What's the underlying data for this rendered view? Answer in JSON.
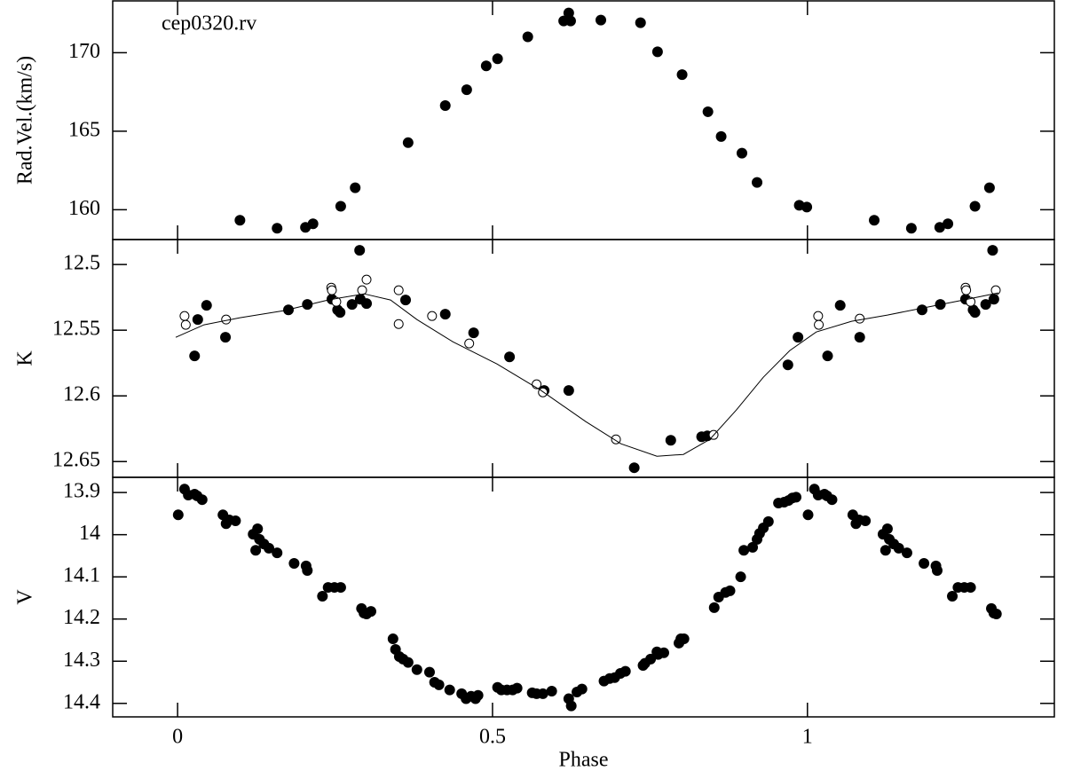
{
  "chart_data": [
    {
      "type": "scatter",
      "ylabel": "Rad.Vel.(km/s)",
      "annotation": "cep0320.rv",
      "xlim": [
        -0.103,
        1.392
      ],
      "xticks": [
        0,
        0.5,
        1
      ],
      "ylim": [
        158.1,
        173.3
      ],
      "yticks": [
        160,
        165,
        170
      ],
      "series": [
        {
          "color": "#000000",
          "marker": "filled",
          "x": [
            0.099,
            0.158,
            0.203,
            0.215,
            0.259,
            0.282,
            0.366,
            0.425,
            0.459,
            0.49,
            0.508,
            0.556,
            0.613,
            0.621,
            0.624,
            0.672,
            0.735,
            0.762,
            0.801,
            0.842,
            0.863,
            0.896,
            0.92,
            0.987,
            0.999,
            1.106,
            1.165,
            1.21,
            1.223,
            1.266,
            1.289
          ],
          "values": [
            159.33,
            158.82,
            158.88,
            159.1,
            160.22,
            161.4,
            164.27,
            166.63,
            167.64,
            169.16,
            169.61,
            171.01,
            172.02,
            172.53,
            172.02,
            172.08,
            171.91,
            170.06,
            168.6,
            166.24,
            164.66,
            163.6,
            161.74,
            160.28,
            160.17,
            159.33,
            158.82,
            158.88,
            159.1,
            160.22,
            161.4
          ]
        }
      ]
    },
    {
      "type": "scatter",
      "ylabel": "K",
      "xlim": [
        -0.103,
        1.392
      ],
      "xticks": [
        0,
        0.5,
        1
      ],
      "ylim": [
        12.662,
        12.481
      ],
      "yticks": [
        12.5,
        12.55,
        12.6,
        12.65
      ],
      "series": [
        {
          "color": "#000000",
          "marker": "filled",
          "x": [
            0.032,
            0.027,
            0.046,
            0.076,
            0.176,
            0.206,
            0.245,
            0.254,
            0.258,
            0.277,
            0.289,
            0.29,
            0.3,
            0.362,
            0.425,
            0.47,
            0.527,
            0.582,
            0.621,
            0.725,
            0.783,
            0.832,
            0.841,
            0.969,
            0.985,
            1.032,
            1.052,
            1.083,
            1.182,
            1.211,
            1.251,
            1.263,
            1.266,
            1.283,
            1.294,
            1.296
          ],
          "values": [
            12.5419,
            12.5696,
            12.5311,
            12.5554,
            12.5345,
            12.5304,
            12.5264,
            12.5345,
            12.5365,
            12.5304,
            12.4892,
            12.5264,
            12.5297,
            12.527,
            12.5378,
            12.552,
            12.5703,
            12.5959,
            12.5959,
            12.6547,
            12.6338,
            12.6311,
            12.6304,
            12.5764,
            12.5554,
            12.5696,
            12.5311,
            12.5554,
            12.5345,
            12.5304,
            12.5264,
            12.5345,
            12.5365,
            12.5304,
            12.4892,
            12.5264
          ]
        },
        {
          "color": "#000000",
          "marker": "open",
          "x": [
            0.011,
            0.013,
            0.077,
            0.244,
            0.245,
            0.252,
            0.293,
            0.3,
            0.351,
            0.351,
            0.404,
            0.463,
            0.57,
            0.58,
            0.696,
            0.851,
            1.017,
            1.018,
            1.083,
            1.251,
            1.252,
            1.259,
            1.299
          ],
          "values": [
            12.5392,
            12.5459,
            12.5419,
            12.5176,
            12.5196,
            12.5284,
            12.5196,
            12.5115,
            12.5196,
            12.5453,
            12.5392,
            12.5601,
            12.5912,
            12.5973,
            12.6331,
            12.6297,
            12.5392,
            12.5459,
            12.5412,
            12.5176,
            12.5196,
            12.5284,
            12.5196
          ]
        },
        {
          "color": "#000000",
          "marker": "line",
          "x": [
            -0.003,
            0.042,
            0.099,
            0.169,
            0.239,
            0.296,
            0.338,
            0.38,
            0.437,
            0.507,
            0.577,
            0.648,
            0.704,
            0.761,
            0.803,
            0.845,
            0.887,
            0.93,
            0.972,
            1.014,
            1.07,
            1.127,
            1.197,
            1.254,
            1.303
          ],
          "values": [
            12.5554,
            12.5459,
            12.5405,
            12.5351,
            12.527,
            12.5223,
            12.527,
            12.5419,
            12.5588,
            12.5757,
            12.5959,
            12.6196,
            12.6365,
            12.6459,
            12.6446,
            12.6331,
            12.6108,
            12.5858,
            12.5655,
            12.5514,
            12.5432,
            12.5385,
            12.5318,
            12.5264,
            12.5216
          ]
        }
      ]
    },
    {
      "type": "scatter",
      "ylabel": "V",
      "xlabel": "Phase",
      "xlim": [
        -0.103,
        1.392
      ],
      "xticks": [
        0,
        0.5,
        1
      ],
      "ylim": [
        14.432,
        13.864
      ],
      "yticks": [
        13.9,
        14,
        14.1,
        14.2,
        14.3,
        14.4
      ],
      "series": [
        {
          "color": "#000000",
          "marker": "filled",
          "x": [
            0.001,
            0.011,
            0.017,
            0.027,
            0.031,
            0.039,
            0.072,
            0.077,
            0.082,
            0.092,
            0.12,
            0.127,
            0.124,
            0.13,
            0.137,
            0.145,
            0.158,
            0.185,
            0.204,
            0.206,
            0.23,
            0.239,
            0.249,
            0.259,
            0.292,
            0.296,
            0.3,
            0.307,
            0.342,
            0.346,
            0.352,
            0.358,
            0.366,
            0.38,
            0.4,
            0.408,
            0.415,
            0.432,
            0.451,
            0.458,
            0.466,
            0.473,
            0.477,
            0.508,
            0.514,
            0.523,
            0.532,
            0.539,
            0.563,
            0.57,
            0.58,
            0.594,
            0.621,
            0.625,
            0.634,
            0.642,
            0.677,
            0.686,
            0.694,
            0.703,
            0.711,
            0.739,
            0.742,
            0.751,
            0.761,
            0.763,
            0.772,
            0.796,
            0.799,
            0.804,
            0.852,
            0.859,
            0.87,
            0.877,
            0.894,
            0.899,
            0.913,
            0.92,
            0.924,
            0.93,
            0.938,
            0.954,
            0.963,
            0.97,
            0.976,
            0.982,
            1.001,
            1.011,
            1.017,
            1.027,
            1.031,
            1.039,
            1.072,
            1.077,
            1.082,
            1.092,
            1.12,
            1.127,
            1.124,
            1.13,
            1.137,
            1.145,
            1.158,
            1.185,
            1.204,
            1.206,
            1.23,
            1.239,
            1.249,
            1.259,
            1.292,
            1.296,
            1.3
          ],
          "values": [
            13.953,
            13.892,
            13.906,
            13.904,
            13.908,
            13.917,
            13.953,
            13.974,
            13.965,
            13.967,
            13.999,
            13.986,
            14.037,
            14.011,
            14.022,
            14.032,
            14.043,
            14.068,
            14.074,
            14.085,
            14.146,
            14.125,
            14.125,
            14.125,
            14.175,
            14.186,
            14.188,
            14.182,
            14.247,
            14.272,
            14.289,
            14.295,
            14.303,
            14.32,
            14.326,
            14.35,
            14.356,
            14.368,
            14.377,
            14.389,
            14.383,
            14.389,
            14.381,
            14.362,
            14.368,
            14.368,
            14.368,
            14.364,
            14.375,
            14.377,
            14.377,
            14.371,
            14.389,
            14.406,
            14.373,
            14.366,
            14.347,
            14.341,
            14.339,
            14.329,
            14.324,
            14.31,
            14.305,
            14.295,
            14.278,
            14.284,
            14.28,
            14.257,
            14.247,
            14.247,
            14.173,
            14.148,
            14.137,
            14.133,
            14.1,
            14.037,
            14.03,
            14.011,
            13.997,
            13.984,
            13.969,
            13.925,
            13.923,
            13.919,
            13.913,
            13.911,
            13.953,
            13.892,
            13.906,
            13.904,
            13.908,
            13.917,
            13.953,
            13.974,
            13.965,
            13.967,
            13.999,
            13.986,
            14.037,
            14.011,
            14.022,
            14.032,
            14.043,
            14.068,
            14.074,
            14.085,
            14.146,
            14.125,
            14.125,
            14.125,
            14.175,
            14.186,
            14.188
          ]
        }
      ]
    }
  ]
}
